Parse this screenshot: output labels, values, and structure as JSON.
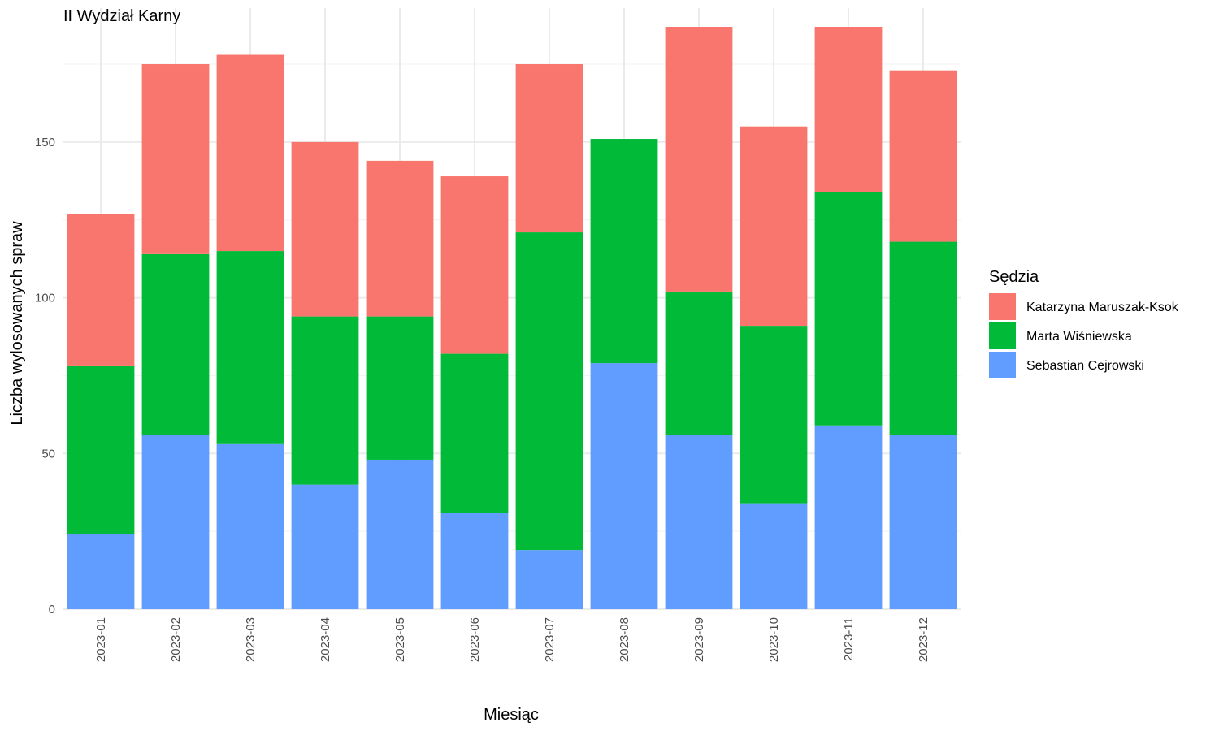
{
  "chart_data": {
    "type": "bar",
    "stacked": true,
    "title": "II Wydział Karny",
    "xlabel": "Miesiąc",
    "ylabel": "Liczba wylosowanych spraw",
    "ylim": [
      0,
      193
    ],
    "yticks": [
      0,
      50,
      100,
      150
    ],
    "grid": true,
    "legend_position": "right",
    "legend_title": "Sędzia",
    "categories": [
      "2023-01",
      "2023-02",
      "2023-03",
      "2023-04",
      "2023-05",
      "2023-06",
      "2023-07",
      "2023-08",
      "2023-09",
      "2023-10",
      "2023-11",
      "2023-12"
    ],
    "series": [
      {
        "name": "Sebastian Cejrowski",
        "color": "#619CFF",
        "values": [
          24,
          56,
          53,
          40,
          48,
          31,
          19,
          79,
          56,
          34,
          59,
          56
        ]
      },
      {
        "name": "Marta Wiśniewska",
        "color": "#00BA38",
        "values": [
          54,
          58,
          62,
          54,
          46,
          51,
          102,
          72,
          46,
          57,
          75,
          62
        ]
      },
      {
        "name": "Katarzyna Maruszak-Ksok",
        "color": "#F8766D",
        "values": [
          49,
          61,
          63,
          56,
          50,
          57,
          54,
          0,
          85,
          64,
          53,
          55
        ]
      }
    ],
    "legend_order": [
      "Katarzyna Maruszak-Ksok",
      "Marta Wiśniewska",
      "Sebastian Cejrowski"
    ]
  }
}
